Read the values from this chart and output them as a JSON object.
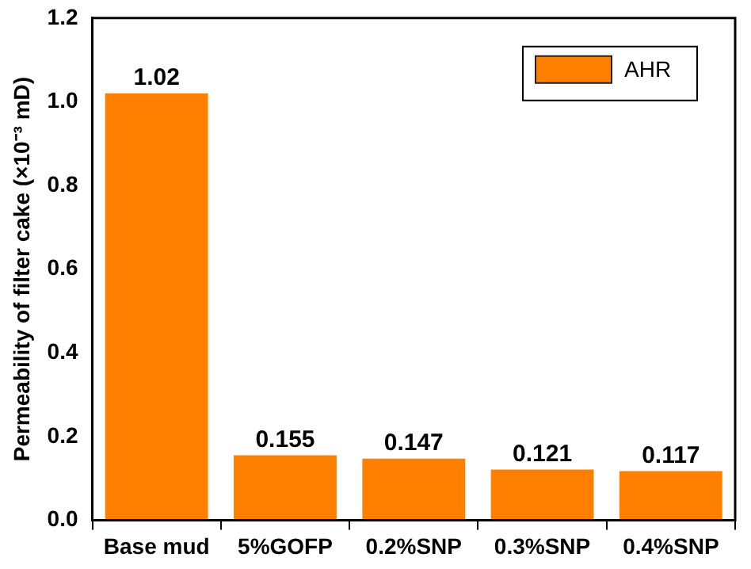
{
  "chart_data": {
    "type": "bar",
    "ylabel": "Permeability of filter cake (×10⁻³ mD)",
    "categories": [
      "Base mud",
      "5%GOFP",
      "0.2%SNP",
      "0.3%SNP",
      "0.4%SNP"
    ],
    "series": [
      {
        "name": "AHR",
        "color": "#ff8000",
        "values": [
          1.02,
          0.155,
          0.147,
          0.121,
          0.117
        ]
      }
    ],
    "value_labels": [
      "1.02",
      "0.155",
      "0.147",
      "0.121",
      "0.117"
    ],
    "ylim": [
      0,
      1.2
    ],
    "yticks": [
      {
        "value": 0,
        "label": "0.0"
      },
      {
        "value": 0.2,
        "label": "0.2"
      },
      {
        "value": 0.4,
        "label": "0.4"
      },
      {
        "value": 0.6,
        "label": "0.6"
      },
      {
        "value": 0.8,
        "label": "0.8"
      },
      {
        "value": 1.0,
        "label": "1.0"
      },
      {
        "value": 1.2,
        "label": "1.2"
      }
    ],
    "grid": false,
    "legend": "top right"
  }
}
